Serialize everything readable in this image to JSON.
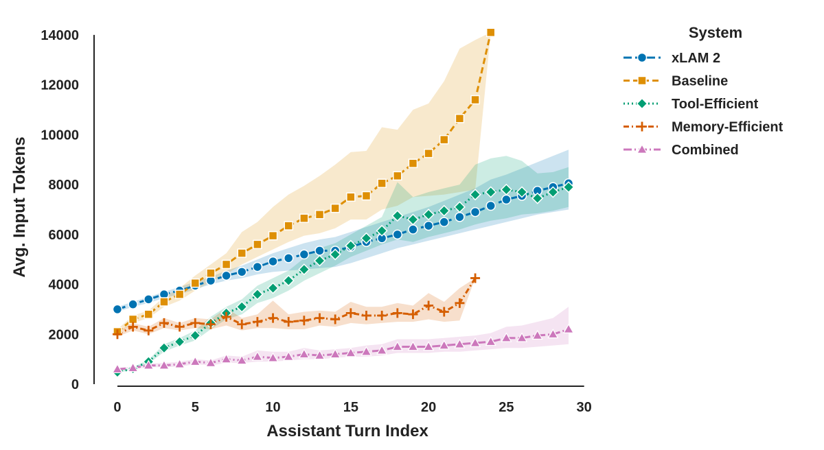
{
  "chart_data": {
    "type": "line",
    "xlabel": "Assistant Turn Index",
    "ylabel": "Avg. Input Tokens",
    "xlim": [
      -1.5,
      30.5
    ],
    "ylim": [
      0,
      14300
    ],
    "xticks": [
      "0",
      "5",
      "10",
      "15",
      "20",
      "25",
      "30"
    ],
    "yticks": [
      "0",
      "2000",
      "4000",
      "6000",
      "8000",
      "10000",
      "12000",
      "14000"
    ],
    "grid": false,
    "legend": {
      "title": "System",
      "position": "top-right, outside plot"
    },
    "series": [
      {
        "name": "xLAM 2",
        "color": "#0173b2",
        "marker": "circle",
        "dash": "long-dash",
        "x": [
          0,
          1,
          2,
          3,
          4,
          5,
          6,
          7,
          8,
          9,
          10,
          11,
          12,
          13,
          14,
          15,
          16,
          17,
          18,
          19,
          20,
          21,
          22,
          23,
          24,
          25,
          26,
          27,
          28,
          29
        ],
        "y": [
          3000,
          3200,
          3400,
          3600,
          3750,
          3950,
          4150,
          4350,
          4500,
          4700,
          4920,
          5050,
          5200,
          5350,
          5350,
          5500,
          5700,
          5850,
          6000,
          6200,
          6350,
          6500,
          6700,
          6900,
          7150,
          7400,
          7550,
          7750,
          7900,
          8050
        ],
        "ci_low": [
          2900,
          3100,
          3250,
          3450,
          3600,
          3800,
          4000,
          4150,
          4250,
          4400,
          4500,
          4550,
          4600,
          4650,
          4700,
          4850,
          5050,
          5250,
          5450,
          5600,
          5750,
          5900,
          6050,
          6200,
          6350,
          6500,
          6650,
          6800,
          6900,
          7000
        ],
        "ci_high": [
          3100,
          3300,
          3500,
          3700,
          3900,
          4100,
          4300,
          4550,
          4750,
          5000,
          5250,
          5450,
          5650,
          5800,
          5900,
          6100,
          6300,
          6500,
          6700,
          6900,
          7100,
          7350,
          7600,
          7850,
          8200,
          8400,
          8650,
          8900,
          9150,
          9400
        ]
      },
      {
        "name": "Baseline",
        "color": "#de8f05",
        "marker": "square",
        "dash": "dash",
        "x": [
          0,
          1,
          2,
          3,
          4,
          5,
          6,
          7,
          8,
          9,
          10,
          11,
          12,
          13,
          14,
          15,
          16,
          17,
          18,
          19,
          20,
          21,
          22,
          23,
          24
        ],
        "y": [
          2100,
          2600,
          2800,
          3300,
          3600,
          4050,
          4450,
          4800,
          5250,
          5600,
          5950,
          6350,
          6650,
          6800,
          7050,
          7500,
          7550,
          8050,
          8350,
          8850,
          9250,
          9800,
          10650,
          11400,
          14100
        ],
        "ci_low": [
          2000,
          2450,
          2650,
          3100,
          3350,
          3750,
          4100,
          4400,
          4800,
          5100,
          5400,
          5700,
          5950,
          6050,
          6250,
          6600,
          6600,
          7000,
          7150,
          7500,
          7550,
          7600,
          7700,
          7800,
          14100
        ],
        "ci_high": [
          2200,
          2750,
          2950,
          3500,
          3850,
          4350,
          4800,
          5250,
          6100,
          6500,
          7100,
          7600,
          7950,
          8350,
          8800,
          9300,
          9350,
          10300,
          10200,
          11000,
          11250,
          12150,
          13450,
          13800,
          14100
        ]
      },
      {
        "name": "Tool-Efficient",
        "color": "#029e73",
        "marker": "diamond",
        "dash": "dotted",
        "x": [
          0,
          1,
          2,
          3,
          4,
          5,
          6,
          7,
          8,
          9,
          10,
          11,
          12,
          13,
          14,
          15,
          16,
          17,
          18,
          19,
          20,
          21,
          22,
          23,
          24,
          25,
          26,
          27,
          28,
          29
        ],
        "y": [
          480,
          620,
          900,
          1450,
          1700,
          1950,
          2450,
          2850,
          3100,
          3600,
          3850,
          4150,
          4600,
          4950,
          5200,
          5550,
          5850,
          6150,
          6750,
          6600,
          6800,
          6950,
          7100,
          7600,
          7700,
          7800,
          7700,
          7450,
          7700,
          7900
        ],
        "ci_low": [
          450,
          580,
          820,
          1300,
          1550,
          1750,
          2200,
          2600,
          2800,
          3250,
          3450,
          3750,
          4150,
          4450,
          4750,
          5100,
          5350,
          5600,
          5800,
          5700,
          5900,
          6050,
          6200,
          6400,
          6550,
          6650,
          6800,
          6850,
          6950,
          7100
        ],
        "ci_high": [
          520,
          680,
          980,
          1600,
          1850,
          2150,
          2700,
          3100,
          3400,
          3950,
          4250,
          4550,
          5050,
          5450,
          5650,
          6000,
          6350,
          6700,
          8100,
          7500,
          7700,
          7850,
          8000,
          8800,
          9050,
          9150,
          8950,
          8450,
          8500,
          8700
        ]
      },
      {
        "name": "Memory-Efficient",
        "color": "#d55e00",
        "marker": "plus",
        "dash": "dash-dot",
        "x": [
          0,
          1,
          2,
          3,
          4,
          5,
          6,
          7,
          8,
          9,
          10,
          11,
          12,
          13,
          14,
          15,
          16,
          17,
          18,
          19,
          20,
          21,
          22,
          23
        ],
        "y": [
          2000,
          2300,
          2150,
          2450,
          2300,
          2450,
          2400,
          2700,
          2400,
          2500,
          2650,
          2500,
          2550,
          2650,
          2600,
          2850,
          2750,
          2750,
          2850,
          2800,
          3150,
          2900,
          3250,
          4250
        ],
        "ci_low": [
          1900,
          2150,
          2000,
          2250,
          2150,
          2250,
          2200,
          2350,
          2150,
          2250,
          2250,
          2200,
          2200,
          2350,
          2300,
          2450,
          2400,
          2450,
          2500,
          2500,
          2600,
          2500,
          2550,
          4250
        ],
        "ci_high": [
          2100,
          2450,
          2300,
          2650,
          2450,
          2650,
          2600,
          3050,
          2650,
          2800,
          3350,
          2800,
          2900,
          2950,
          2900,
          3300,
          3100,
          3100,
          3250,
          3150,
          3650,
          3300,
          3850,
          4250
        ]
      },
      {
        "name": "Combined",
        "color": "#cc78bc",
        "marker": "triangle",
        "dash": "long-dash-dot",
        "x": [
          0,
          1,
          2,
          3,
          4,
          5,
          6,
          7,
          8,
          9,
          10,
          11,
          12,
          13,
          14,
          15,
          16,
          17,
          18,
          19,
          20,
          21,
          22,
          23,
          24,
          25,
          26,
          27,
          28,
          29
        ],
        "y": [
          600,
          650,
          750,
          750,
          800,
          900,
          850,
          1000,
          950,
          1100,
          1050,
          1100,
          1200,
          1150,
          1200,
          1250,
          1300,
          1350,
          1500,
          1500,
          1500,
          1550,
          1600,
          1650,
          1700,
          1850,
          1850,
          1950,
          2000,
          2200
        ],
        "ci_low": [
          550,
          600,
          680,
          680,
          700,
          800,
          750,
          850,
          850,
          900,
          900,
          950,
          1000,
          1000,
          1050,
          1100,
          1100,
          1150,
          1250,
          1250,
          1250,
          1300,
          1300,
          1350,
          1400,
          1450,
          1450,
          1500,
          1550,
          1600
        ],
        "ci_high": [
          650,
          700,
          830,
          850,
          900,
          1000,
          950,
          1150,
          1100,
          1350,
          1300,
          1300,
          1450,
          1350,
          1400,
          1450,
          1550,
          1600,
          1800,
          1800,
          1800,
          1850,
          1900,
          1950,
          2050,
          2300,
          2350,
          2500,
          2650,
          3100
        ]
      }
    ]
  }
}
